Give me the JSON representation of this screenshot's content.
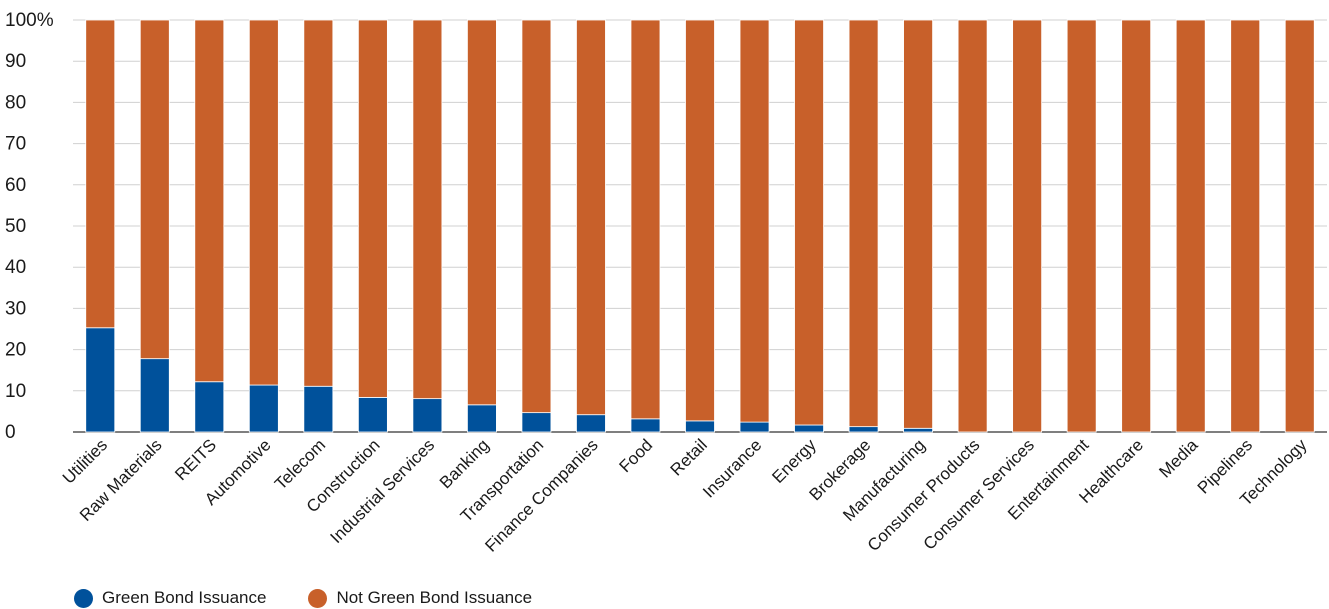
{
  "chart_data": {
    "type": "bar",
    "stacked": true,
    "categories": [
      "Utilities",
      "Raw Materials",
      "REITS",
      "Automotive",
      "Telecom",
      "Construction",
      "Industrial Services",
      "Banking",
      "Transportation",
      "Finance Companies",
      "Food",
      "Retail",
      "Insurance",
      "Energy",
      "Brokerage",
      "Manufacturing",
      "Consumer Products",
      "Consumer Services",
      "Entertainment",
      "Healthcare",
      "Media",
      "Pipelines",
      "Technology"
    ],
    "series": [
      {
        "name": "Green Bond Issuance",
        "color": "#00519b",
        "values": [
          25.3,
          17.8,
          12.2,
          11.4,
          11.1,
          8.4,
          8.1,
          6.6,
          4.7,
          4.2,
          3.2,
          2.7,
          2.4,
          1.7,
          1.3,
          0.9,
          0,
          0,
          0,
          0,
          0,
          0,
          0
        ]
      },
      {
        "name": "Not Green Bond Issuance",
        "color": "#c8602a",
        "values": [
          74.7,
          82.2,
          87.8,
          88.6,
          88.9,
          91.6,
          91.9,
          93.4,
          95.3,
          95.8,
          96.8,
          97.3,
          97.6,
          98.3,
          98.7,
          99.1,
          100,
          100,
          100,
          100,
          100,
          100,
          100
        ]
      }
    ],
    "yticks": [
      "0",
      "10",
      "20",
      "30",
      "40",
      "50",
      "60",
      "70",
      "80",
      "90",
      "100%"
    ],
    "ylim": [
      0,
      100
    ],
    "grid": true,
    "legend_position": "bottom-left",
    "title": "",
    "xlabel": "",
    "ylabel": ""
  }
}
